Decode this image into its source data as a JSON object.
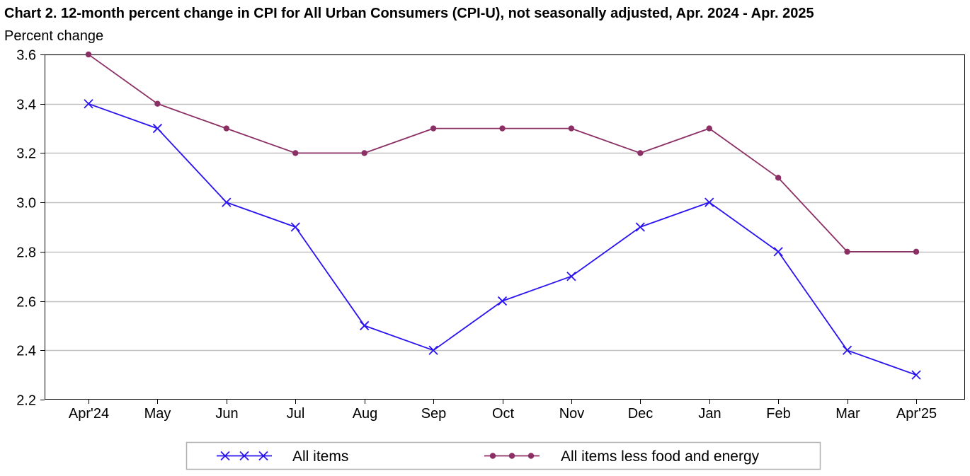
{
  "chart": {
    "title": "Chart 2. 12-month percent change in CPI for All Urban Consumers (CPI-U), not seasonally adjusted, Apr. 2024 - Apr. 2025",
    "subtitle": "Percent change"
  },
  "chart_data": {
    "type": "line",
    "title": "Chart 2. 12-month percent change in CPI for All Urban Consumers (CPI-U), not seasonally adjusted, Apr. 2024 - Apr. 2025",
    "ylabel": "Percent change",
    "xlabel": "",
    "categories": [
      "Apr'24",
      "May",
      "Jun",
      "Jul",
      "Aug",
      "Sep",
      "Oct",
      "Nov",
      "Dec",
      "Jan",
      "Feb",
      "Mar",
      "Apr'25"
    ],
    "ylim": [
      2.2,
      3.6
    ],
    "yticks": [
      "2.2",
      "2.4",
      "2.6",
      "2.8",
      "3.0",
      "3.2",
      "3.4",
      "3.6"
    ],
    "grid": true,
    "legend_position": "bottom",
    "series": [
      {
        "name": "All items",
        "color": "#2a13f0",
        "marker": "x",
        "values": [
          3.4,
          3.3,
          3.0,
          2.9,
          2.5,
          2.4,
          2.6,
          2.7,
          2.9,
          3.0,
          2.8,
          2.4,
          2.3
        ]
      },
      {
        "name": "All items less food and energy",
        "color": "#8b2f64",
        "marker": "circle",
        "values": [
          3.6,
          3.4,
          3.3,
          3.2,
          3.2,
          3.3,
          3.3,
          3.3,
          3.2,
          3.3,
          3.1,
          2.8,
          2.8
        ]
      }
    ]
  }
}
